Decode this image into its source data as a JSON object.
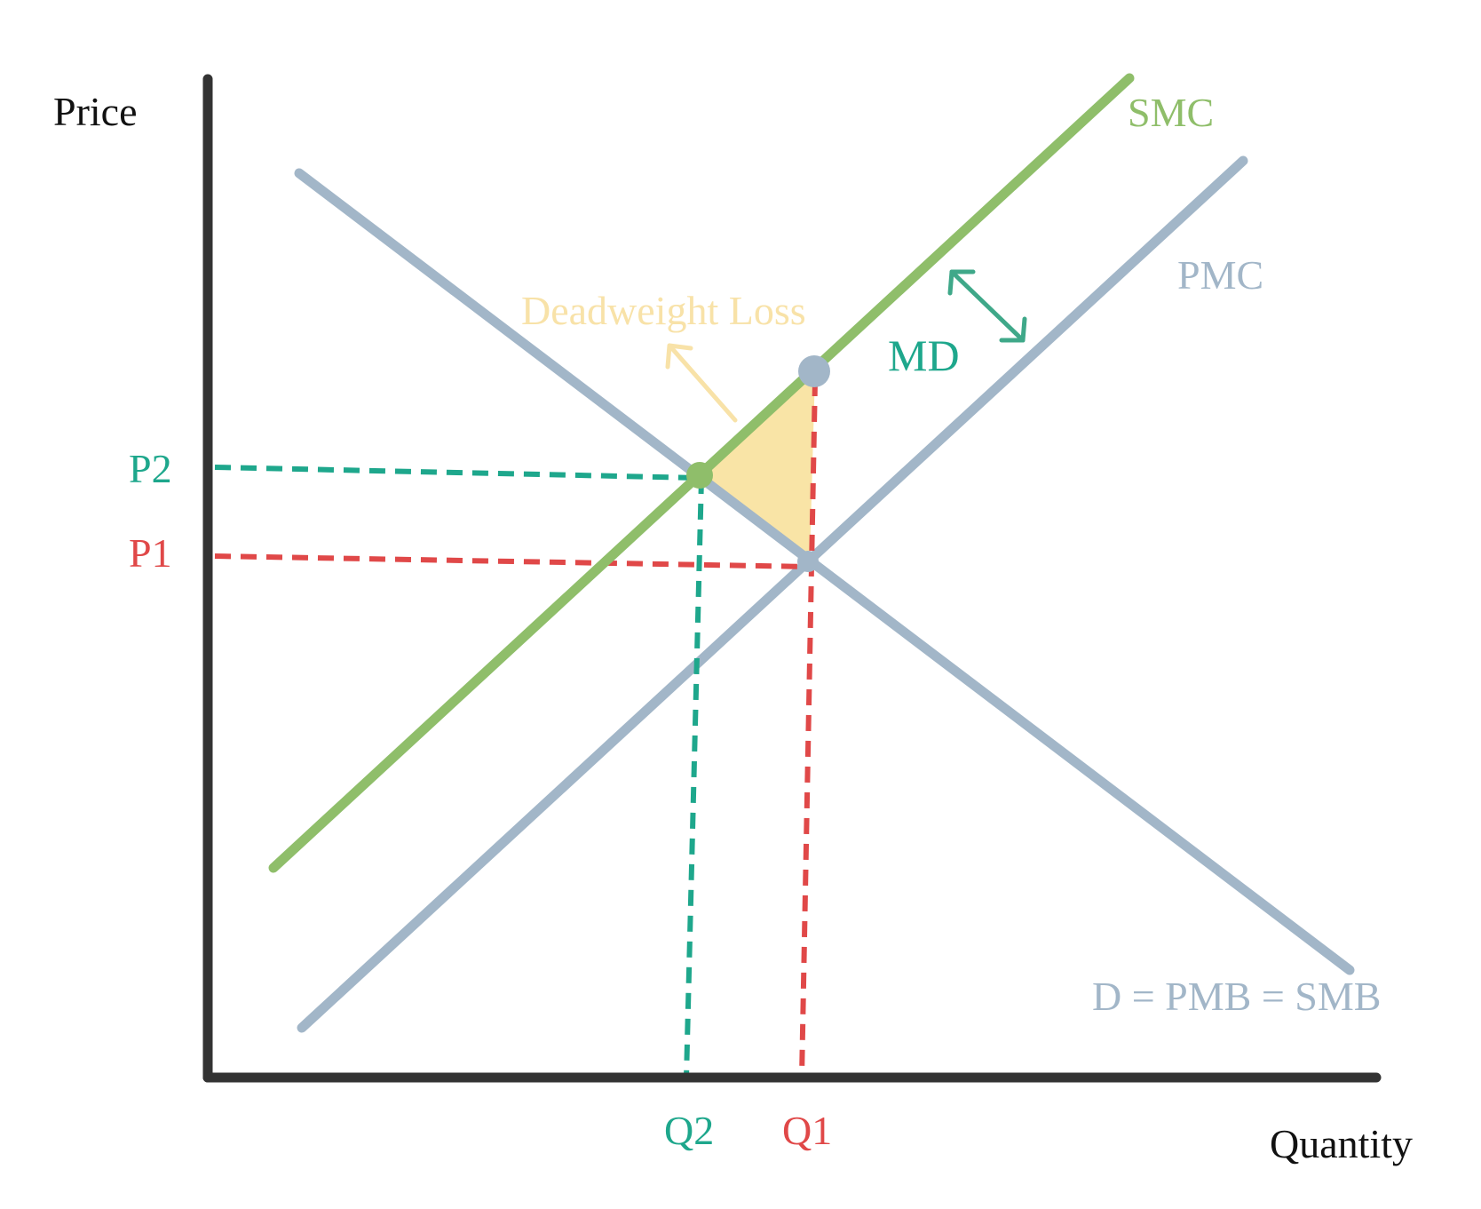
{
  "axes": {
    "y_label": "Price",
    "x_label": "Quantity"
  },
  "curves": {
    "smc": {
      "label": "SMC",
      "color": "#8FBE6A"
    },
    "pmc": {
      "label": "PMC",
      "color": "#A2B6C8"
    },
    "demand": {
      "label": "D = PMB = SMB",
      "color": "#A2B6C8"
    }
  },
  "annotations": {
    "md": {
      "label": "MD",
      "color": "#1EA78C"
    },
    "deadweight_loss": {
      "label": "Deadweight Loss",
      "color": "#F8E2A8",
      "fill": "#F9E4A6"
    }
  },
  "levels": {
    "p1": {
      "label": "P1",
      "color": "#E04848"
    },
    "p2": {
      "label": "P2",
      "color": "#1EA78C"
    },
    "q1": {
      "label": "Q1",
      "color": "#E04848"
    },
    "q2": {
      "label": "Q2",
      "color": "#1EA78C"
    }
  },
  "colors": {
    "axis": "#333333",
    "point_market": "#A2B6C8",
    "point_social": "#8FBE6A"
  }
}
